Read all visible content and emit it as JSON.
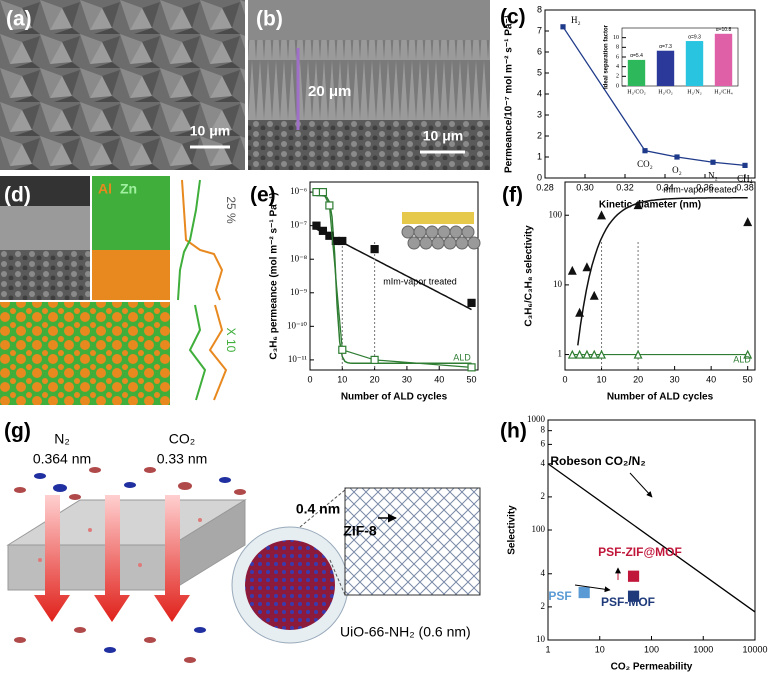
{
  "panels": {
    "a": {
      "label": "(a)",
      "scale_bar": "10 μm"
    },
    "b": {
      "label": "(b)",
      "thickness": "20 μm",
      "scale_bar": "10 μm"
    },
    "d": {
      "label": "(d)",
      "element_1": "Al",
      "element_2": "Zn",
      "profile_1": "25 %",
      "profile_2": "X 10"
    },
    "g": {
      "label": "(g)",
      "gas_1": "N₂",
      "size_1": "0.364 nm",
      "gas_2": "CO₂",
      "size_2": "0.33 nm",
      "aperture": "0.4 nm",
      "shell": "ZIF-8",
      "core": "UiO-66-NH₂ (0.6 nm)"
    }
  },
  "chart_data": [
    {
      "type": "line",
      "panel_label": "(c)",
      "x_label": "Kinetic diameter (nm)",
      "y_label": "Permeance/10⁻⁷ mol m⁻² s⁻¹ Pa⁻¹",
      "xlim": [
        0.28,
        0.385
      ],
      "xticks": [
        0.28,
        {
          "value": 0.3,
          "label": "0.30"
        },
        0.32,
        0.34,
        0.36,
        0.38
      ],
      "ylim": [
        0,
        8
      ],
      "yticks": [
        0,
        1,
        2,
        3,
        4,
        5,
        6,
        7,
        8
      ],
      "series": [
        {
          "color": "#1f3a8a",
          "marker": "square",
          "filled": true,
          "line": true,
          "x": [
            0.289,
            0.33,
            0.346,
            0.364,
            0.38
          ],
          "values": [
            7.2,
            1.3,
            1.0,
            0.75,
            0.6
          ],
          "point_labels": [
            "H₂",
            "CO₂",
            "O₂",
            "N₂",
            "CH₄"
          ]
        }
      ]
    },
    {
      "type": "bar",
      "y_label": "Ideal separation factor",
      "categories": [
        "H₂/CO₂",
        "H₂/O₂",
        "H₂/N₂",
        "H₂/CH₄"
      ],
      "values": [
        5.4,
        7.3,
        9.3,
        10.8
      ],
      "value_labels": [
        "α=5.4",
        "α=7.3",
        "α=9.3",
        "α=10.8"
      ],
      "colors": [
        "#2eb85c",
        "#2b3a9a",
        "#29c4e0",
        "#e060a8"
      ],
      "ylim": [
        0,
        12
      ],
      "yticks": [
        0,
        2,
        4,
        6,
        8,
        10
      ]
    },
    {
      "type": "line",
      "panel_label": "(e)",
      "x_label": "Number of ALD cycles",
      "y_label": "C₃H₆ permeance (mol m⁻² s⁻¹ Pa⁻¹)",
      "log_y": true,
      "xlim": [
        0,
        52
      ],
      "xticks": [
        0,
        10,
        20,
        30,
        40,
        50
      ],
      "ylim": [
        5e-12,
        2e-06
      ],
      "yticks": [
        {
          "value": 1e-11,
          "label": "10⁻¹¹"
        },
        {
          "value": 1e-10,
          "label": "10⁻¹⁰"
        },
        {
          "value": 1e-09,
          "label": "10⁻⁹"
        },
        {
          "value": 1e-08,
          "label": "10⁻⁸"
        },
        {
          "value": 1e-07,
          "label": "10⁻⁷"
        },
        {
          "value": 1e-06,
          "label": "10⁻⁶"
        }
      ],
      "series": [
        {
          "name": "mIm-vapor treated",
          "color": "#111111",
          "marker": "square",
          "filled": true,
          "x": [
            2,
            4,
            6,
            8,
            10,
            20,
            50
          ],
          "values": [
            1e-07,
            7e-08,
            5e-08,
            3.5e-08,
            3.5e-08,
            2e-08,
            5e-10
          ]
        },
        {
          "name": "ALD",
          "color": "#2e7d32",
          "marker": "square",
          "filled": false,
          "x": [
            2,
            4,
            6,
            10,
            20,
            50
          ],
          "values": [
            1e-06,
            1e-06,
            4e-07,
            2e-11,
            1e-11,
            6e-12
          ]
        }
      ]
    },
    {
      "type": "line",
      "panel_label": "(f)",
      "x_label": "Number of ALD cycles",
      "y_label": "C₃H₆/C₃H₈ selectivity",
      "log_y": true,
      "xlim": [
        0,
        52
      ],
      "xticks": [
        0,
        10,
        20,
        30,
        40,
        50
      ],
      "ylim": [
        0.6,
        300
      ],
      "yticks": [
        1,
        10,
        100
      ],
      "series": [
        {
          "name": "mIm-vapor treated",
          "color": "#111111",
          "marker": "triangle",
          "filled": true,
          "x": [
            2,
            4,
            6,
            8,
            10,
            20,
            50
          ],
          "values": [
            16,
            4,
            18,
            7,
            100,
            140,
            80
          ]
        },
        {
          "name": "ALD",
          "color": "#2e7d32",
          "marker": "triangle",
          "filled": false,
          "x": [
            2,
            4,
            6,
            8,
            10,
            20,
            50
          ],
          "values": [
            1,
            1,
            1,
            1,
            1,
            1,
            1
          ]
        }
      ]
    },
    {
      "type": "scatter",
      "panel_label": "(h)",
      "x_label": "CO₂ Permeability",
      "y_label": "Selectivity",
      "log_x": true,
      "log_y": true,
      "xlim": [
        1,
        10000
      ],
      "xticks": [
        1,
        10,
        100,
        1000,
        10000
      ],
      "ylim": [
        10,
        1000
      ],
      "yticks": [
        10,
        {
          "value": 20,
          "label": "2"
        },
        {
          "value": 40,
          "label": "4"
        },
        100,
        {
          "value": 200,
          "label": "2"
        },
        {
          "value": 400,
          "label": "4"
        },
        {
          "value": 600,
          "label": "6"
        },
        {
          "value": 800,
          "label": "8"
        },
        1000
      ],
      "series": [
        {
          "name": "Robeson CO₂/N₂",
          "color": "#000000",
          "marker": "none",
          "line": true,
          "x": [
            1,
            10000
          ],
          "values": [
            400,
            18
          ]
        },
        {
          "name": "PSF",
          "color": "#5b9bd5",
          "marker": "square",
          "filled": true,
          "x": [
            5
          ],
          "values": [
            27
          ]
        },
        {
          "name": "PSF-MOF",
          "color": "#1f3a7a",
          "marker": "square",
          "filled": true,
          "x": [
            45
          ],
          "values": [
            25
          ]
        },
        {
          "name": "PSF-ZIF@MOF",
          "color": "#c0163a",
          "marker": "square",
          "filled": true,
          "x": [
            45
          ],
          "values": [
            38
          ]
        }
      ]
    }
  ]
}
